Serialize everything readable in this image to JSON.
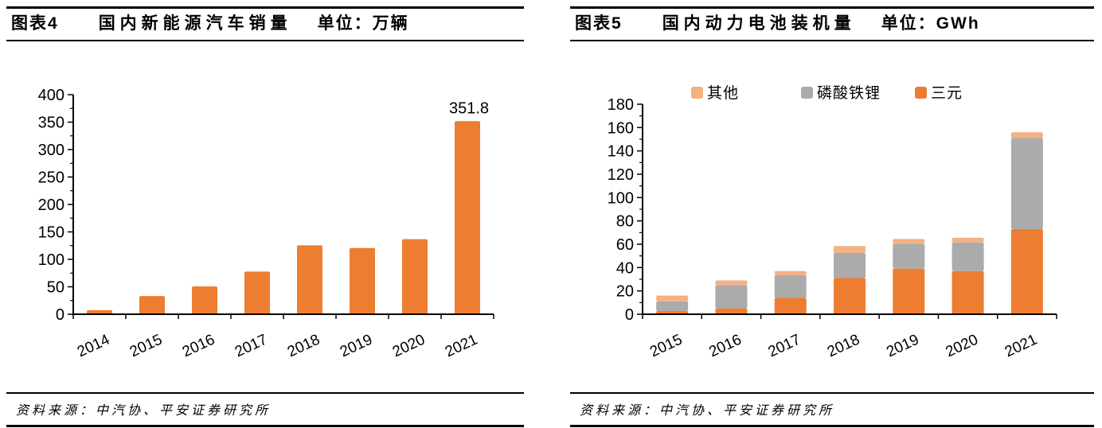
{
  "panels": [
    {
      "label": "图表4",
      "title": "国内新能源汽车销量",
      "unit_label": "单位：万辆",
      "source": "资料来源：中汽协、平安证券研究所"
    },
    {
      "label": "图表5",
      "title": "国内动力电池装机量",
      "unit_label": "单位：GWh",
      "source": "资料来源：中汽协、平安证券研究所"
    }
  ],
  "chart_data": [
    {
      "type": "bar",
      "title": "国内新能源汽车销量",
      "ylabel_unit": "万辆",
      "categories": [
        "2014",
        "2015",
        "2016",
        "2017",
        "2018",
        "2019",
        "2020",
        "2021"
      ],
      "values": [
        7.5,
        33.1,
        50.7,
        77.7,
        125.6,
        120.6,
        136.7,
        351.8
      ],
      "bar_color": "#ED7D31",
      "ylim": [
        0,
        400
      ],
      "ytick_step": 50,
      "yticks": [
        0,
        50,
        100,
        150,
        200,
        250,
        300,
        350,
        400
      ],
      "grid": false,
      "legend": null,
      "annotation": {
        "category": "2021",
        "text": "351.8"
      }
    },
    {
      "type": "bar",
      "stacked": true,
      "title": "国内动力电池装机量",
      "ylabel_unit": "GWh",
      "categories": [
        "2015",
        "2016",
        "2017",
        "2018",
        "2019",
        "2020",
        "2021"
      ],
      "series": [
        {
          "name": "三元",
          "color": "#ED7D31",
          "values": [
            3,
            5,
            14,
            31,
            39,
            37,
            73
          ]
        },
        {
          "name": "磷酸铁锂",
          "color": "#ABABAB",
          "values": [
            8,
            20,
            19.5,
            21.5,
            21.5,
            24.5,
            78
          ]
        },
        {
          "name": "其他",
          "color": "#F4B183",
          "values": [
            5,
            4,
            3.5,
            6,
            4,
            4,
            5
          ]
        }
      ],
      "legend": [
        "其他",
        "磷酸铁锂",
        "三元"
      ],
      "legend_position": "top",
      "ylim": [
        0,
        180
      ],
      "ytick_step": 20,
      "yticks": [
        0,
        20,
        40,
        60,
        80,
        100,
        120,
        140,
        160,
        180
      ],
      "grid": false
    }
  ]
}
